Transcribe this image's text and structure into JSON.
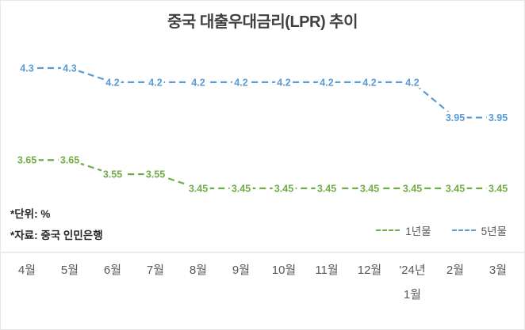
{
  "title": "중국 대출우대금리(LPR) 추이",
  "notes": {
    "unit": "*단위: %",
    "source": "*자료: 중국 인민은행"
  },
  "chart_data": {
    "type": "line",
    "title": "중국 대출우대금리(LPR) 추이",
    "unit": "%",
    "categories": [
      "4월",
      "5월",
      "6월",
      "7월",
      "8월",
      "9월",
      "10월",
      "11월",
      "12월",
      "'24년\n1월",
      "2월",
      "3월"
    ],
    "series": [
      {
        "name": "1년물",
        "color": "#70AD47",
        "values": [
          3.65,
          3.65,
          3.55,
          3.55,
          3.45,
          3.45,
          3.45,
          3.45,
          3.45,
          3.45,
          3.45,
          3.45
        ]
      },
      {
        "name": "5년물",
        "color": "#5B9BD5",
        "values": [
          4.3,
          4.3,
          4.2,
          4.2,
          4.2,
          4.2,
          4.2,
          4.2,
          4.2,
          4.2,
          3.95,
          3.95
        ]
      }
    ],
    "ylim": [
      3.3,
      4.45
    ],
    "grid": false,
    "line_style": "dashed",
    "data_labels": "center",
    "legend_position": "bottom-right",
    "source_text": "*자료: 중국 인민은행",
    "unit_text": "*단위: %"
  }
}
